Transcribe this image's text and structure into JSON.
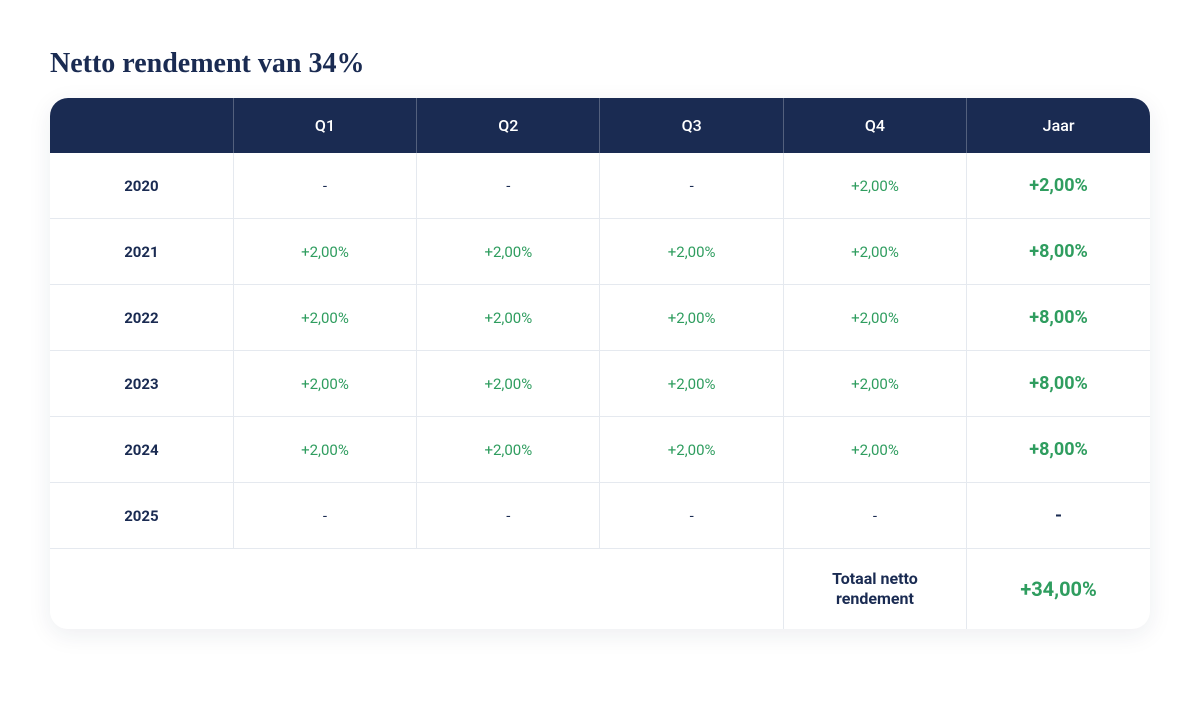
{
  "title": "Netto rendement van 34%",
  "table": {
    "type": "table",
    "columns": [
      "",
      "Q1",
      "Q2",
      "Q3",
      "Q4",
      "Jaar"
    ],
    "column_widths": [
      "16.6%",
      "16.6%",
      "16.6%",
      "16.6%",
      "16.6%",
      "17%"
    ],
    "rows": [
      {
        "year": "2020",
        "q1": "-",
        "q2": "-",
        "q3": "-",
        "q4": "+2,00%",
        "jaar": "+2,00%"
      },
      {
        "year": "2021",
        "q1": "+2,00%",
        "q2": "+2,00%",
        "q3": "+2,00%",
        "q4": "+2,00%",
        "jaar": "+8,00%"
      },
      {
        "year": "2022",
        "q1": "+2,00%",
        "q2": "+2,00%",
        "q3": "+2,00%",
        "q4": "+2,00%",
        "jaar": "+8,00%"
      },
      {
        "year": "2023",
        "q1": "+2,00%",
        "q2": "+2,00%",
        "q3": "+2,00%",
        "q4": "+2,00%",
        "jaar": "+8,00%"
      },
      {
        "year": "2024",
        "q1": "+2,00%",
        "q2": "+2,00%",
        "q3": "+2,00%",
        "q4": "+2,00%",
        "jaar": "+8,00%"
      },
      {
        "year": "2025",
        "q1": "-",
        "q2": "-",
        "q3": "-",
        "q4": "-",
        "jaar": "-"
      }
    ],
    "footer": {
      "label": "Totaal netto rendement",
      "value": "+34,00%"
    },
    "colors": {
      "header_bg": "#1a2b52",
      "header_text": "#ffffff",
      "border": "#e5e9ef",
      "year_text": "#1a2b52",
      "value_text": "#2f9d5f",
      "dash_text": "#1a2b52",
      "background_color": "#ffffff"
    },
    "typography": {
      "title_fontsize_pt": 21,
      "header_fontsize_pt": 12,
      "cell_fontsize_pt": 11,
      "jaar_fontsize_pt": 13.5,
      "footer_value_fontsize_pt": 15
    }
  }
}
